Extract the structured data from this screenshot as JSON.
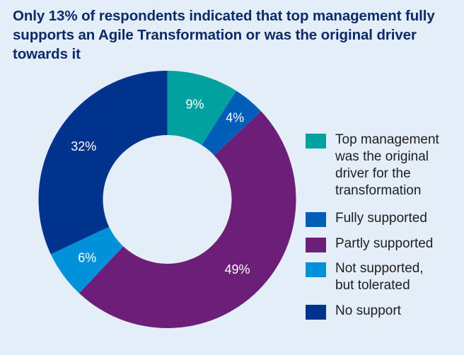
{
  "chart_data": {
    "type": "pie",
    "variant": "donut",
    "title": "Only 13% of respondents indicated that top management fully supports an Agile Transformation or was the original driver towards it",
    "start_angle_deg": 0,
    "direction": "clockwise",
    "slices": [
      {
        "label": "Top management was the original driver for the transformation",
        "value": 9,
        "display": "9%",
        "color": "#00a19e"
      },
      {
        "label": "Fully supported",
        "value": 4,
        "display": "4%",
        "color": "#005eb8"
      },
      {
        "label": "Partly supported",
        "value": 49,
        "display": "49%",
        "color": "#6c1f79"
      },
      {
        "label": "Not supported, but tolerated",
        "value": 6,
        "display": "6%",
        "color": "#0091da"
      },
      {
        "label": "No support",
        "value": 32,
        "display": "32%",
        "color": "#00338d"
      }
    ],
    "legend_position": "right"
  },
  "legend": {
    "items": [
      {
        "lines": [
          "Top management",
          "was the original",
          "driver for the",
          "transformation"
        ]
      },
      {
        "lines": [
          "Fully supported"
        ]
      },
      {
        "lines": [
          "Partly supported"
        ]
      },
      {
        "lines": [
          "Not supported,",
          "but tolerated"
        ]
      },
      {
        "lines": [
          "No support"
        ]
      }
    ]
  },
  "colors": {
    "background": "#e4eef9",
    "title": "#0c2a6a"
  }
}
